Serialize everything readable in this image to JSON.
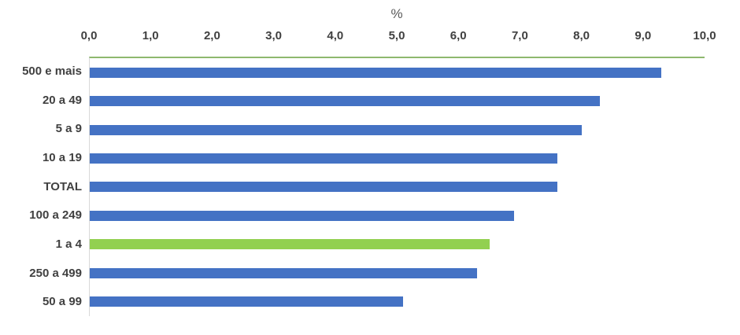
{
  "chart_data": {
    "type": "bar",
    "orientation": "horizontal",
    "title": "%",
    "categories": [
      "500 e mais",
      "20 a 49",
      "5 a 9",
      "10 a 19",
      "TOTAL",
      "100 a 249",
      "1 a 4",
      "250 a 499",
      "50 a 99"
    ],
    "values": [
      9.3,
      8.3,
      8.0,
      7.6,
      7.6,
      6.9,
      6.5,
      6.3,
      5.1
    ],
    "highlight_category": "1 a 4",
    "xlabel": "%",
    "ylabel": "",
    "xlim": [
      0,
      10
    ],
    "x_ticks": [
      "0,0",
      "1,0",
      "2,0",
      "3,0",
      "4,0",
      "5,0",
      "6,0",
      "7,0",
      "8,0",
      "9,0",
      "10,0"
    ],
    "axis_position": "top",
    "grid": false,
    "legend": false,
    "colors": {
      "bar_default": "#4472C4",
      "bar_highlight": "#92D050",
      "plot_top_border": "#8EB86E",
      "axis_line": "#D9D9D9",
      "tick_label": "#404040",
      "axis_title": "#595959"
    }
  }
}
